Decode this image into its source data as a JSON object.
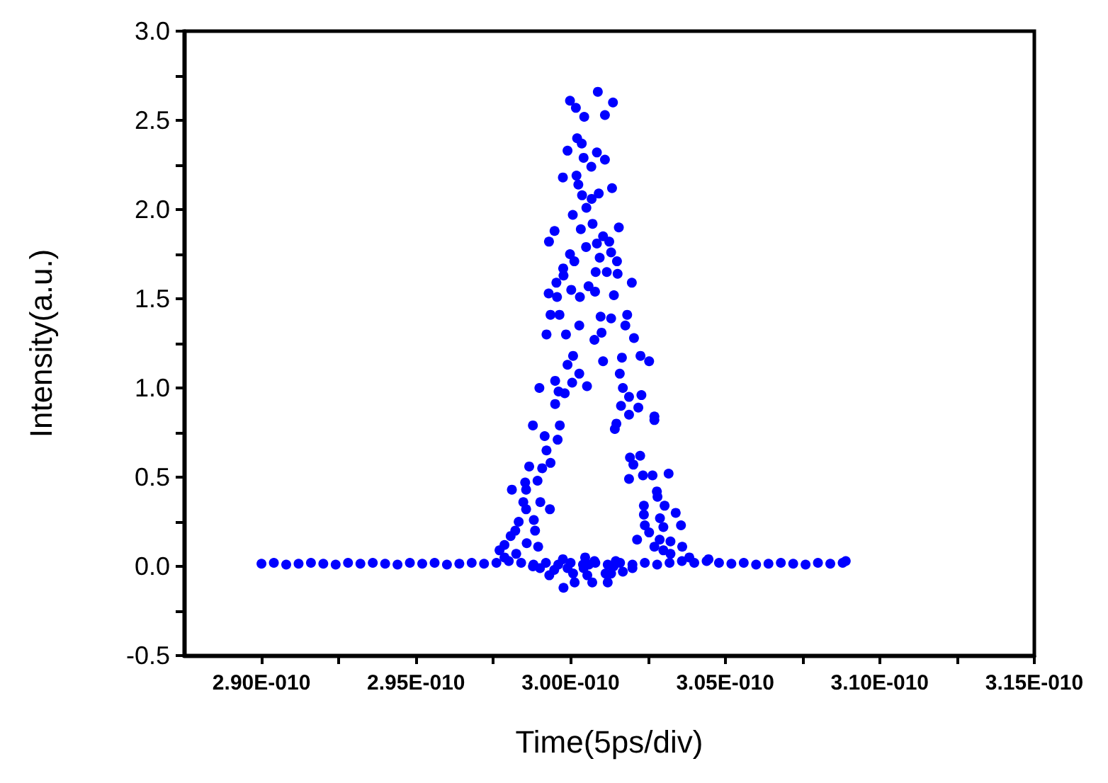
{
  "chart_data": {
    "type": "scatter",
    "xlabel": "Time(5ps/div)",
    "ylabel": "Intensity(a.u.)",
    "marker": "circle",
    "grid": false,
    "xlim": [
      2.875e-10,
      3.15e-10
    ],
    "xticks": [
      {
        "value": 2.9e-10,
        "label": "2.90E-010"
      },
      {
        "value": 2.925e-10,
        "label": null
      },
      {
        "value": 2.95e-10,
        "label": "2.95E-010"
      },
      {
        "value": 2.975e-10,
        "label": null
      },
      {
        "value": 3e-10,
        "label": "3.00E-010"
      },
      {
        "value": 3.025e-10,
        "label": null
      },
      {
        "value": 3.05e-10,
        "label": "3.05E-010"
      },
      {
        "value": 3.075e-10,
        "label": null
      },
      {
        "value": 3.1e-10,
        "label": "3.10E-010"
      },
      {
        "value": 3.125e-10,
        "label": null
      },
      {
        "value": 3.15e-10,
        "label": "3.15E-010"
      }
    ],
    "ylim": [
      -0.5,
      3.0
    ],
    "yticks": [
      {
        "value": -0.5,
        "label": "-0.5"
      },
      {
        "value": -0.25,
        "label": null
      },
      {
        "value": 0,
        "label": "0.0"
      },
      {
        "value": 0.25,
        "label": null
      },
      {
        "value": 0.5,
        "label": "0.5"
      },
      {
        "value": 0.75,
        "label": null
      },
      {
        "value": 1,
        "label": "1.0"
      },
      {
        "value": 1.25,
        "label": null
      },
      {
        "value": 1.5,
        "label": "1.5"
      },
      {
        "value": 1.75,
        "label": null
      },
      {
        "value": 2,
        "label": "2.0"
      },
      {
        "value": 2.25,
        "label": null
      },
      {
        "value": 2.5,
        "label": "2.5"
      },
      {
        "value": 2.75,
        "label": null
      },
      {
        "value": 3,
        "label": "3.0"
      }
    ],
    "series": [
      {
        "color": "#0000ff",
        "x": [
          2.9e-10,
          2.904e-10,
          2.908e-10,
          2.912e-10,
          2.916e-10,
          2.92e-10,
          2.924e-10,
          2.928e-10,
          2.932e-10,
          2.936e-10,
          2.94e-10,
          2.944e-10,
          2.948e-10,
          2.952e-10,
          2.956e-10,
          2.96e-10,
          2.964e-10,
          2.968e-10,
          2.972e-10,
          2.976e-10,
          2.98e-10,
          2.984e-10,
          2.988e-10,
          2.992e-10,
          2.996e-10,
          3e-10,
          3.004e-10,
          3.008e-10,
          3.012e-10,
          3.016e-10,
          3.02e-10,
          3.024e-10,
          3.028e-10,
          3.032e-10,
          3.036e-10,
          3.04e-10,
          3.044e-10,
          3.048e-10,
          3.052e-10,
          3.056e-10,
          3.06e-10,
          3.064e-10,
          3.068e-10,
          3.072e-10,
          3.076e-10,
          3.08e-10,
          3.084e-10,
          3.088e-10,
          3.089e-10,
          2.9998e-10,
          3.0017e-10,
          3.0044e-10,
          3.0088e-10,
          3.0137e-10,
          3.0111e-10,
          3.0021e-10,
          3.0036e-10,
          2.999e-10,
          3.0042e-10,
          3.0085e-10,
          3.0111e-10,
          3.0067e-10,
          2.9975e-10,
          3.0019e-10,
          3.0025e-10,
          3.0134e-10,
          3.0037e-10,
          3.0091e-10,
          3.0068e-10,
          3.0051e-10,
          3.0007e-10,
          2.9948e-10,
          2.993e-10,
          3.0033e-10,
          3.0071e-10,
          3.0156e-10,
          3.0105e-10,
          3.0125e-10,
          3.005e-10,
          3.0085e-10,
          2.9998e-10,
          3.0012e-10,
          3.0131e-10,
          3.0094e-10,
          3.015e-10,
          2.9976e-10,
          2.9954e-10,
          2.9977e-10,
          3.0081e-10,
          3.0117e-10,
          3.0152e-10,
          3.0198e-10,
          2.9929e-10,
          2.9956e-10,
          3.0002e-10,
          3.003e-10,
          3.0058e-10,
          3.0079e-10,
          3.014e-10,
          2.9935e-10,
          2.9964e-10,
          3.0028e-10,
          3.0097e-10,
          3.0131e-10,
          3.0183e-10,
          3.0177e-10,
          2.9922e-10,
          2.9985e-10,
          3.01e-10,
          3.0205e-10,
          3.0077e-10,
          2.999e-10,
          3.0008e-10,
          3.0105e-10,
          3.0166e-10,
          3.0226e-10,
          3.0254e-10,
          3.0159e-10,
          3.0028e-10,
          2.995e-10,
          3.0005e-10,
          3.0053e-10,
          2.9899e-10,
          2.9961e-10,
          2.9981e-10,
          3.0169e-10,
          3.0189e-10,
          3.0229e-10,
          2.995e-10,
          3.0163e-10,
          3.0219e-10,
          3.0189e-10,
          3.0271e-10,
          3.0271e-10,
          2.9878e-10,
          2.9965e-10,
          3.0148e-10,
          3.0143e-10,
          2.9916e-10,
          2.9958e-10,
          2.9922e-10,
          2.9935e-10,
          2.9866e-10,
          2.9908e-10,
          3.0192e-10,
          3.0225e-10,
          3.0203e-10,
          3.0234e-10,
          3.0265e-10,
          3.0317e-10,
          3.0189e-10,
          2.9893e-10,
          2.9853e-10,
          2.981e-10,
          2.9856e-10,
          3.0279e-10,
          3.0281e-10,
          2.9847e-10,
          2.9902e-10,
          3.0237e-10,
          3.0304e-10,
          2.9856e-10,
          2.9933e-10,
          3.034e-10,
          2.9881e-10,
          3.0237e-10,
          3.0289e-10,
          2.9832e-10,
          2.9885e-10,
          3.024e-10,
          3.03e-10,
          3.0357e-10,
          2.9821e-10,
          2.9806e-10,
          2.9858e-10,
          2.9895e-10,
          2.9786e-10,
          3.0215e-10,
          3.0254e-10,
          3.0288e-10,
          3.0323e-10,
          3.0271e-10,
          2.977e-10,
          3.03e-10,
          3.0361e-10,
          2.9931e-10,
          2.9947e-10,
          2.9975e-10,
          2.999e-10,
          2.9977e-10,
          3.0008e-10,
          3.0013e-10,
          3.0047e-10,
          3.0042e-10,
          3.0054e-10,
          3.007e-10,
          3.0059e-10,
          3.0077e-10,
          3.0113e-10,
          3.012e-10,
          3.0139e-10,
          3.0146e-10,
          3.0131e-10,
          3.0169e-10,
          2.9878e-10,
          2.9901e-10,
          3.02e-10,
          2.9786e-10,
          2.9824e-10,
          3.0323e-10,
          3.0384e-10,
          3.0446e-10
        ],
        "values": [
          0.015,
          0.02,
          0.01,
          0.015,
          0.02,
          0.015,
          0.01,
          0.02,
          0.015,
          0.02,
          0.015,
          0.01,
          0.02,
          0.015,
          0.02,
          0.01,
          0.015,
          0.02,
          0.015,
          0.02,
          0.03,
          0.02,
          0.01,
          0.02,
          0.01,
          0.02,
          0.01,
          0.02,
          0.01,
          0.02,
          0.01,
          0.02,
          0.01,
          0.02,
          0.03,
          0.02,
          0.03,
          0.02,
          0.015,
          0.02,
          0.01,
          0.015,
          0.02,
          0.015,
          0.01,
          0.02,
          0.015,
          0.02,
          0.03,
          2.61,
          2.57,
          2.52,
          2.66,
          2.6,
          2.53,
          2.4,
          2.37,
          2.33,
          2.29,
          2.32,
          2.28,
          2.24,
          2.18,
          2.19,
          2.14,
          2.12,
          2.08,
          2.09,
          2.06,
          2.01,
          1.97,
          1.88,
          1.82,
          1.89,
          1.92,
          1.9,
          1.85,
          1.82,
          1.79,
          1.81,
          1.75,
          1.71,
          1.76,
          1.73,
          1.71,
          1.67,
          1.59,
          1.63,
          1.65,
          1.65,
          1.64,
          1.59,
          1.53,
          1.51,
          1.55,
          1.51,
          1.57,
          1.54,
          1.52,
          1.41,
          1.41,
          1.35,
          1.4,
          1.39,
          1.41,
          1.35,
          1.3,
          1.3,
          1.31,
          1.28,
          1.27,
          1.13,
          1.18,
          1.15,
          1.17,
          1.18,
          1.15,
          1.08,
          1.08,
          1.04,
          1.03,
          1.01,
          1.0,
          0.98,
          0.97,
          1.0,
          0.95,
          0.96,
          0.91,
          0.9,
          0.89,
          0.85,
          0.84,
          0.82,
          0.79,
          0.79,
          0.8,
          0.77,
          0.73,
          0.71,
          0.65,
          0.58,
          0.56,
          0.55,
          0.61,
          0.62,
          0.57,
          0.51,
          0.51,
          0.52,
          0.49,
          0.48,
          0.47,
          0.43,
          0.43,
          0.42,
          0.39,
          0.36,
          0.36,
          0.34,
          0.34,
          0.32,
          0.32,
          0.3,
          0.26,
          0.29,
          0.27,
          0.25,
          0.2,
          0.23,
          0.22,
          0.23,
          0.2,
          0.17,
          0.13,
          0.11,
          0.12,
          0.15,
          0.19,
          0.15,
          0.14,
          0.11,
          0.09,
          0.09,
          0.11,
          -0.05,
          -0.02,
          0.04,
          -0.01,
          -0.12,
          -0.04,
          -0.09,
          0.05,
          -0.01,
          -0.05,
          -0.09,
          0.01,
          0.03,
          -0.04,
          -0.09,
          0,
          0.03,
          -0.04,
          -0.03,
          0,
          -0.01,
          -0.01,
          0.05,
          0.07,
          0.07,
          0.05,
          0.04
        ]
      }
    ]
  }
}
